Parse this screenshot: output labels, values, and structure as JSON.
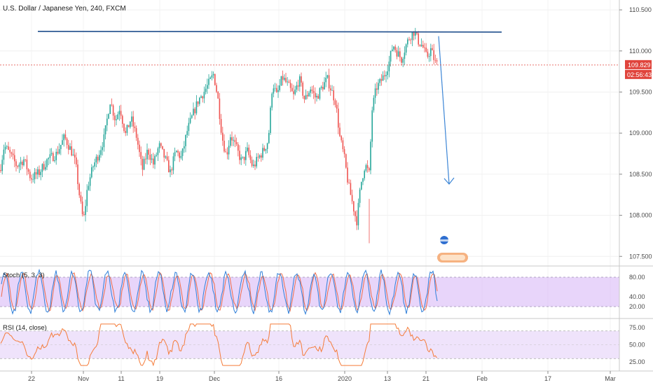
{
  "colors": {
    "up": "#26a69a",
    "down": "#ef5350",
    "stoch_k": "#2f7fd9",
    "stoch_d": "#ef6c4a",
    "stoch_band": "#d5b3f5",
    "rsi_line": "#f57c3a",
    "rsi_band": "#efe3fb",
    "trend_line": "#1f4e8c",
    "arrow": "#3d86d6",
    "price_line": "#e0443c"
  },
  "chart_data": {
    "type": "candlestick",
    "title": "U.S. Dollar / Japanese Yen, 240, FXCM",
    "price_axis_ticks": [
      "110.500",
      "110.000",
      "109.500",
      "109.000",
      "108.500",
      "108.000",
      "107.500"
    ],
    "price_axis_range": [
      107.4,
      110.62
    ],
    "time_axis_ticks": [
      "22",
      "Nov",
      "11",
      "19",
      "Dec",
      "16",
      "2020",
      "13",
      "21",
      "Feb",
      "17",
      "Mar"
    ],
    "current_price": "109.829",
    "countdown": "02:56:43",
    "resistance_level": 110.23,
    "projected_arrow": {
      "from": 110.18,
      "to": 108.38
    },
    "price_path": [
      [
        0,
        108.55
      ],
      [
        6,
        108.85
      ],
      [
        16,
        108.72
      ],
      [
        24,
        108.6
      ],
      [
        34,
        108.68
      ],
      [
        44,
        108.45
      ],
      [
        56,
        108.52
      ],
      [
        68,
        108.68
      ],
      [
        80,
        108.74
      ],
      [
        92,
        108.95
      ],
      [
        102,
        108.78
      ],
      [
        108,
        108.62
      ],
      [
        114,
        108.2
      ],
      [
        119,
        107.92
      ],
      [
        125,
        108.35
      ],
      [
        133,
        108.6
      ],
      [
        141,
        108.75
      ],
      [
        149,
        108.95
      ],
      [
        157,
        109.4
      ],
      [
        165,
        109.15
      ],
      [
        171,
        109.32
      ],
      [
        179,
        108.98
      ],
      [
        187,
        109.18
      ],
      [
        195,
        108.95
      ],
      [
        203,
        108.55
      ],
      [
        211,
        108.8
      ],
      [
        219,
        108.62
      ],
      [
        227,
        108.85
      ],
      [
        235,
        108.7
      ],
      [
        243,
        108.52
      ],
      [
        251,
        108.78
      ],
      [
        259,
        108.7
      ],
      [
        267,
        109.02
      ],
      [
        275,
        109.22
      ],
      [
        283,
        109.4
      ],
      [
        291,
        109.5
      ],
      [
        299,
        109.62
      ],
      [
        305,
        109.72
      ],
      [
        311,
        109.42
      ],
      [
        317,
        108.95
      ],
      [
        323,
        108.72
      ],
      [
        329,
        108.98
      ],
      [
        337,
        108.82
      ],
      [
        345,
        108.65
      ],
      [
        353,
        108.78
      ],
      [
        361,
        108.58
      ],
      [
        369,
        108.7
      ],
      [
        377,
        108.8
      ],
      [
        383,
        108.92
      ],
      [
        389,
        109.62
      ],
      [
        395,
        109.45
      ],
      [
        403,
        109.68
      ],
      [
        411,
        109.58
      ],
      [
        419,
        109.45
      ],
      [
        427,
        109.66
      ],
      [
        435,
        109.4
      ],
      [
        443,
        109.55
      ],
      [
        451,
        109.42
      ],
      [
        459,
        109.55
      ],
      [
        467,
        109.66
      ],
      [
        473,
        109.52
      ],
      [
        479,
        109.38
      ],
      [
        485,
        108.95
      ],
      [
        491,
        108.72
      ],
      [
        497,
        108.38
      ],
      [
        503,
        108.15
      ],
      [
        509,
        107.92
      ],
      [
        515,
        108.38
      ],
      [
        521,
        108.62
      ],
      [
        527,
        108.5
      ],
      [
        531,
        109.28
      ],
      [
        537,
        109.55
      ],
      [
        543,
        109.62
      ],
      [
        549,
        109.72
      ],
      [
        555,
        109.85
      ],
      [
        561,
        110.08
      ],
      [
        567,
        109.98
      ],
      [
        573,
        109.9
      ],
      [
        579,
        110.06
      ],
      [
        585,
        110.18
      ],
      [
        591,
        110.24
      ],
      [
        597,
        110.12
      ],
      [
        603,
        110.06
      ],
      [
        609,
        109.92
      ],
      [
        615,
        110.02
      ],
      [
        621,
        109.86
      ],
      [
        625,
        109.83
      ]
    ],
    "indicators": [
      {
        "name": "Stoch (5, 3, 3)",
        "ticks": [
          "80.00",
          "40.00",
          "20.00"
        ],
        "range": [
          0,
          100
        ],
        "band": [
          20,
          80
        ]
      },
      {
        "name": "RSI (14, close)",
        "ticks": [
          "75.00",
          "50.00",
          "25.00"
        ],
        "range": [
          15,
          85
        ],
        "band": [
          30,
          70
        ]
      }
    ]
  }
}
